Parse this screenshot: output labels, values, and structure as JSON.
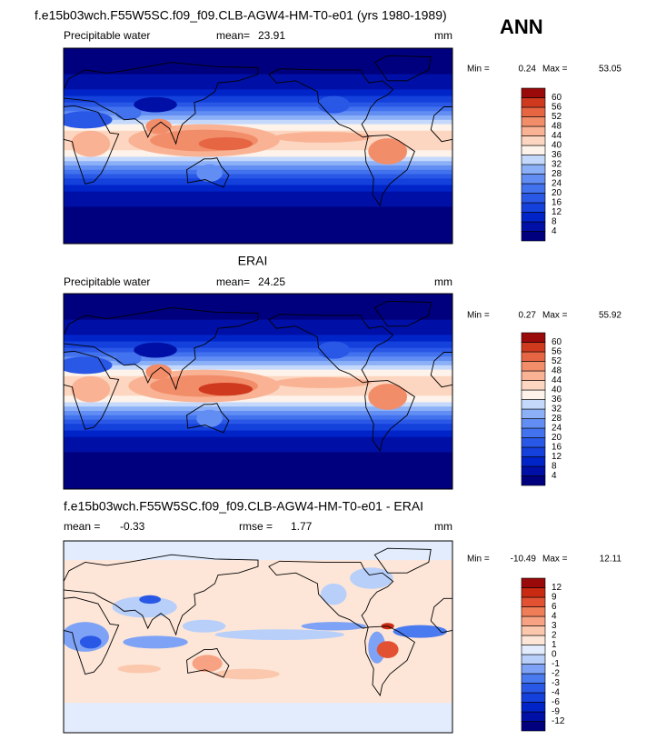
{
  "header": {
    "title": "f.e15b03wch.F55W5SC.f09_f09.CLB-AGW4-HM-T0-e01 (yrs 1980-1989)",
    "season": "ANN"
  },
  "panels": [
    {
      "variable": "Precipitable water",
      "mean_label": "mean=",
      "mean": 23.91,
      "units": "mm",
      "min_label": "Min =",
      "min": 0.24,
      "max_label": "Max =",
      "max": 53.05,
      "levels": [
        4,
        8,
        12,
        16,
        20,
        24,
        28,
        32,
        36,
        40,
        44,
        48,
        52,
        56,
        60
      ],
      "colors": [
        "#00007f",
        "#0010a6",
        "#0024c8",
        "#1440dc",
        "#2a58e6",
        "#4272ee",
        "#628ef3",
        "#8cb0f7",
        "#c4d8fb",
        "#fdf3ea",
        "#fcd6c0",
        "#f9b294",
        "#f28d6a",
        "#e66644",
        "#cf3a1f",
        "#9a0a0a"
      ]
    },
    {
      "title": "ERAI",
      "variable": "Precipitable water",
      "mean_label": "mean=",
      "mean": 24.25,
      "units": "mm",
      "min_label": "Min =",
      "min": 0.27,
      "max_label": "Max =",
      "max": 55.92,
      "levels": [
        4,
        8,
        12,
        16,
        20,
        24,
        28,
        32,
        36,
        40,
        44,
        48,
        52,
        56,
        60
      ],
      "colors": [
        "#00007f",
        "#0010a6",
        "#0024c8",
        "#1440dc",
        "#2a58e6",
        "#4272ee",
        "#628ef3",
        "#8cb0f7",
        "#c4d8fb",
        "#fdf3ea",
        "#fcd6c0",
        "#f9b294",
        "#f28d6a",
        "#e66644",
        "#cf3a1f",
        "#9a0a0a"
      ]
    },
    {
      "title": "f.e15b03wch.F55W5SC.f09_f09.CLB-AGW4-HM-T0-e01 - ERAI",
      "mean_label": "mean =",
      "mean": -0.33,
      "rmse_label": "rmse =",
      "rmse": 1.77,
      "units": "mm",
      "min_label": "Min =",
      "min": -10.49,
      "max_label": "Max =",
      "max": 12.11,
      "levels": [
        -12,
        -9,
        -6,
        -4,
        -3,
        -2,
        -1,
        0,
        1,
        2,
        3,
        4,
        6,
        9,
        12
      ],
      "colors": [
        "#00007f",
        "#0010a6",
        "#0024c8",
        "#1440dc",
        "#2a58e6",
        "#4a7aef",
        "#7ea2f5",
        "#b8cffa",
        "#e2ecfd",
        "#fde6d8",
        "#fbc7ad",
        "#f7a383",
        "#ef7d58",
        "#e25232",
        "#c92a12",
        "#9a0a0a"
      ]
    }
  ]
}
